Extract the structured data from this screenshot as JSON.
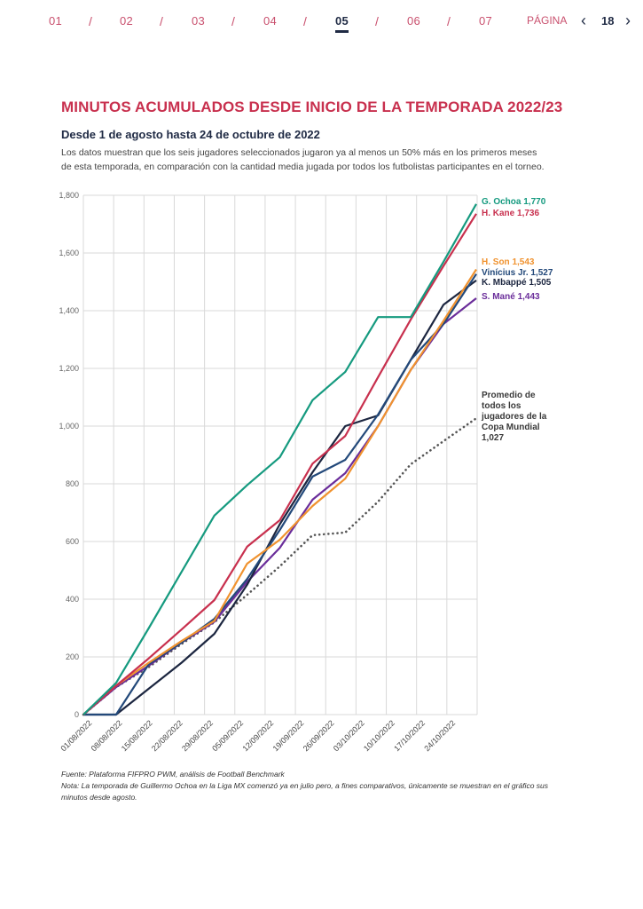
{
  "nav": {
    "sections": [
      "01",
      "02",
      "03",
      "04",
      "05",
      "06",
      "07"
    ],
    "active_section": "05",
    "separator": "/",
    "page_label": "PÁGINA",
    "page_number": "18",
    "prev_icon": "‹",
    "next_icon": "›"
  },
  "header": {
    "title": "MINUTOS ACUMULADOS DESDE INICIO DE LA TEMPORADA 2022/23",
    "subtitle": "Desde 1 de agosto hasta 24 de octubre de 2022",
    "description": "Los datos muestran que los seis jugadores seleccionados jugaron ya al menos un 50% más en los primeros meses de esta temporada, en comparación con la cantidad media jugada por todos los futbolistas participantes en el torneo."
  },
  "chart_data": {
    "type": "line",
    "title": "Minutos acumulados desde inicio de la temporada 2022/23",
    "xlabel": "",
    "ylabel": "",
    "ylim": [
      0,
      1800
    ],
    "yticks": [
      0,
      200,
      400,
      600,
      800,
      1000,
      1200,
      1400,
      1600,
      1800
    ],
    "ytick_labels": [
      "0",
      "200",
      "400",
      "600",
      "800",
      "1,000",
      "1,200",
      "1,400",
      "1,600",
      "1,800"
    ],
    "grid": true,
    "categories": [
      "01/08/2022",
      "08/08/2022",
      "15/08/2022",
      "22/08/2022",
      "29/08/2022",
      "05/09/2022",
      "12/09/2022",
      "19/09/2022",
      "26/09/2022",
      "03/10/2022",
      "10/10/2022",
      "17/10/2022",
      "24/10/2022"
    ],
    "series": [
      {
        "name": "G. Ochoa",
        "end_label": "G. Ochoa 1,770",
        "color": "#159a7f",
        "style": "solid",
        "values": [
          0,
          110,
          300,
          495,
          690,
          795,
          892,
          1090,
          1188,
          1378,
          1378,
          1570,
          1770
        ]
      },
      {
        "name": "H. Kane",
        "end_label": "H. Kane 1,736",
        "color": "#c8304e",
        "style": "solid",
        "values": [
          0,
          100,
          195,
          295,
          397,
          582,
          674,
          870,
          966,
          1170,
          1370,
          1555,
          1736
        ]
      },
      {
        "name": "H. Son",
        "end_label": "H. Son 1,543",
        "color": "#f0922e",
        "style": "solid",
        "values": [
          0,
          100,
          180,
          255,
          325,
          523,
          606,
          723,
          818,
          1000,
          1195,
          1365,
          1543
        ]
      },
      {
        "name": "Vinícius Jr.",
        "end_label": "Vinícius Jr. 1,527",
        "color": "#23497a",
        "style": "solid",
        "values": [
          0,
          0,
          175,
          250,
          332,
          470,
          640,
          825,
          883,
          1040,
          1230,
          1354,
          1527
        ]
      },
      {
        "name": "K. Mbappé",
        "end_label": "K. Mbappé 1,505",
        "color": "#1c2640",
        "style": "solid",
        "values": [
          0,
          0,
          90,
          180,
          280,
          450,
          660,
          840,
          1000,
          1037,
          1230,
          1421,
          1505
        ]
      },
      {
        "name": "S. Mané",
        "end_label": "S. Mané 1,443",
        "color": "#6a2d9a",
        "style": "solid",
        "values": [
          0,
          95,
          170,
          250,
          322,
          460,
          578,
          745,
          837,
          1000,
          1195,
          1354,
          1443
        ]
      },
      {
        "name": "Promedio de todos los jugadores de la Copa Mundial",
        "end_label_lines": [
          "Promedio de",
          "todos los",
          "jugadores de la",
          "Copa Mundial",
          "1,027"
        ],
        "color": "#555555",
        "style": "dotted",
        "values": [
          0,
          95,
          165,
          245,
          320,
          415,
          514,
          622,
          631,
          738,
          868,
          948,
          1027
        ]
      }
    ],
    "legend": "end-of-line labels on the right"
  },
  "footer": {
    "source": "Fuente: Plataforma FIFPRO PWM, análisis de Football Benchmark",
    "note": "Nota: La temporada de Guillermo Ochoa en la Liga MX comenzó ya en julio pero, a fines comparativos, únicamente se muestran en el gráfico sus minutos desde agosto."
  }
}
